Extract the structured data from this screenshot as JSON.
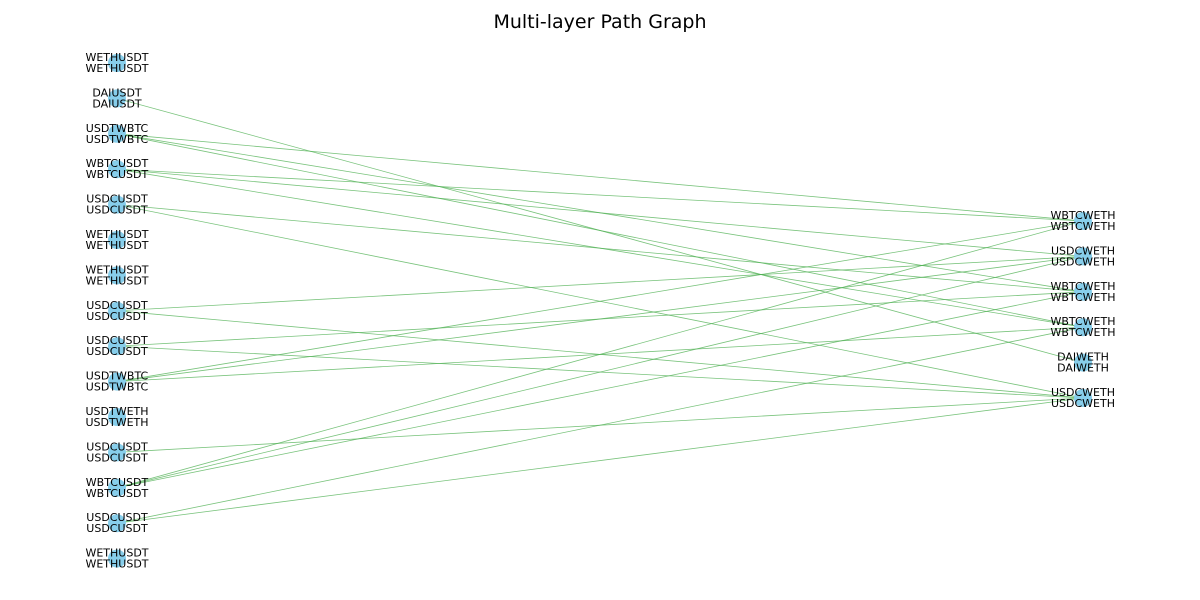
{
  "title": "Multi-layer Path Graph",
  "style": {
    "node_color": "#87CEEB",
    "edge_color": "#4CAF50"
  },
  "layers": [
    {
      "name": "left",
      "nodes": [
        {
          "id": "L0",
          "labels": [
            "WETHUSDT",
            "WETHUSDT"
          ]
        },
        {
          "id": "L1",
          "labels": [
            "DAIUSDT",
            "DAIUSDT"
          ]
        },
        {
          "id": "L2",
          "labels": [
            "USDTWBTC",
            "USDTWBTC"
          ]
        },
        {
          "id": "L3",
          "labels": [
            "WBTCUSDT",
            "WBTCUSDT"
          ]
        },
        {
          "id": "L4",
          "labels": [
            "USDCUSDT",
            "USDCUSDT"
          ]
        },
        {
          "id": "L5",
          "labels": [
            "WETHUSDT",
            "WETHUSDT"
          ]
        },
        {
          "id": "L6",
          "labels": [
            "WETHUSDT",
            "WETHUSDT"
          ]
        },
        {
          "id": "L7",
          "labels": [
            "USDCUSDT",
            "USDCUSDT"
          ]
        },
        {
          "id": "L8",
          "labels": [
            "USDCUSDT",
            "USDCUSDT"
          ]
        },
        {
          "id": "L9",
          "labels": [
            "USDTWBTC",
            "USDTWBTC"
          ]
        },
        {
          "id": "L10",
          "labels": [
            "USDTWETH",
            "USDTWETH"
          ]
        },
        {
          "id": "L11",
          "labels": [
            "USDCUSDT",
            "USDCUSDT"
          ]
        },
        {
          "id": "L12",
          "labels": [
            "WBTCUSDT",
            "WBTCUSDT"
          ]
        },
        {
          "id": "L13",
          "labels": [
            "USDCUSDT",
            "USDCUSDT"
          ]
        },
        {
          "id": "L14",
          "labels": [
            "WETHUSDT",
            "WETHUSDT"
          ]
        }
      ]
    },
    {
      "name": "right",
      "nodes": [
        {
          "id": "R0",
          "labels": [
            "WBTCWETH",
            "WBTCWETH"
          ]
        },
        {
          "id": "R1",
          "labels": [
            "USDCWETH",
            "USDCWETH"
          ]
        },
        {
          "id": "R2",
          "labels": [
            "WBTCWETH",
            "WBTCWETH"
          ]
        },
        {
          "id": "R3",
          "labels": [
            "WBTCWETH",
            "WBTCWETH"
          ]
        },
        {
          "id": "R4",
          "labels": [
            "DAIWETH",
            "DAIWETH"
          ]
        },
        {
          "id": "R5",
          "labels": [
            "USDCWETH",
            "USDCWETH"
          ]
        }
      ]
    }
  ],
  "edges": [
    [
      "L1",
      "R4"
    ],
    [
      "L2",
      "R0"
    ],
    [
      "L2",
      "R2"
    ],
    [
      "L2",
      "R3"
    ],
    [
      "L3",
      "R0"
    ],
    [
      "L3",
      "R3"
    ],
    [
      "L3",
      "R1"
    ],
    [
      "L4",
      "R2"
    ],
    [
      "L4",
      "R5"
    ],
    [
      "L7",
      "R1"
    ],
    [
      "L7",
      "R5"
    ],
    [
      "L8",
      "R2"
    ],
    [
      "L8",
      "R5"
    ],
    [
      "L9",
      "R0"
    ],
    [
      "L9",
      "R1"
    ],
    [
      "L9",
      "R3"
    ],
    [
      "L11",
      "R5"
    ],
    [
      "L12",
      "R0"
    ],
    [
      "L12",
      "R1"
    ],
    [
      "L12",
      "R2"
    ],
    [
      "L13",
      "R3"
    ],
    [
      "L13",
      "R5"
    ]
  ]
}
